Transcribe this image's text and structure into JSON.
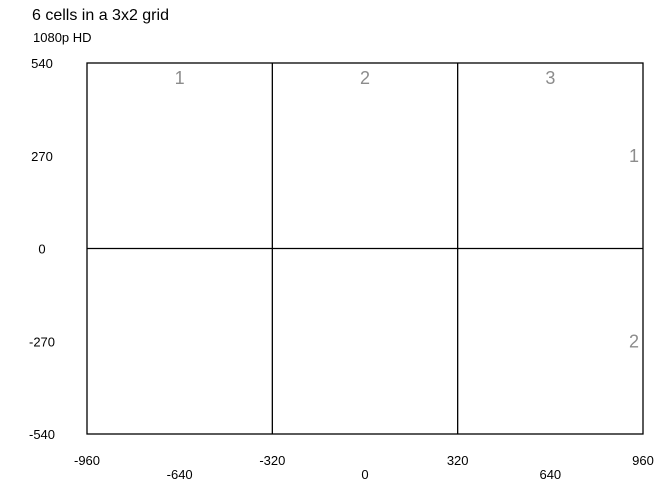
{
  "title": "6 cells in a 3x2 grid",
  "subtitle": "1080p HD",
  "chart_data": {
    "type": "grid",
    "title": "6 cells in a 3x2 grid",
    "subtitle": "1080p HD",
    "columns": 3,
    "rows": 2,
    "xlim": [
      -960,
      960
    ],
    "ylim": [
      -540,
      540
    ],
    "x_ticks_upper": [
      -960,
      -320,
      320,
      960
    ],
    "x_ticks_lower": [
      -640,
      0,
      640
    ],
    "y_ticks": [
      540,
      270,
      0,
      -270,
      -540
    ],
    "column_labels": [
      "1",
      "2",
      "3"
    ],
    "row_labels": [
      "1",
      "2"
    ],
    "colors": {
      "grid_line": "#000000",
      "cell_label": "#8c8c8c",
      "tick_label": "#000000"
    }
  }
}
